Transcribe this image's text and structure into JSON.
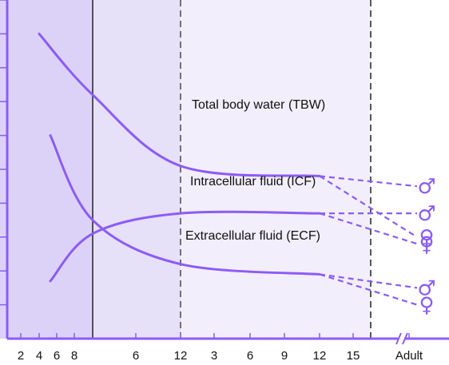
{
  "chart_data": {
    "type": "line",
    "title": "",
    "xlabel": "",
    "ylabel": "",
    "x_tick_labels": [
      "2",
      "4",
      "6",
      "8",
      "6",
      "12",
      "3",
      "6",
      "9",
      "12",
      "15",
      "Adult"
    ],
    "x_axis_break": true,
    "grid": false,
    "colors": {
      "line": "#8b5cf6",
      "region_fetal": "#dcd2f7",
      "region_infant": "#e6e0f8",
      "region_child": "#f2eefb",
      "axis": "#8b5cf6",
      "divider": "#222222"
    },
    "sex_symbols": {
      "male": "♂",
      "female": "♀"
    },
    "series": [
      {
        "name": "Total body water (TBW)",
        "points": [
          {
            "x": "4",
            "y": 9.0
          },
          {
            "x": "birth",
            "y": 7.2
          },
          {
            "x": "12",
            "y": 5.1
          },
          {
            "x": "12 (years)",
            "y": 4.8
          }
        ],
        "adult": {
          "male": 4.5,
          "female": 3.0
        }
      },
      {
        "name": "Intracellular fluid (ICF)",
        "points": [
          {
            "x": "6",
            "y": 1.7
          },
          {
            "x": "birth",
            "y": 3.1
          },
          {
            "x": "12",
            "y": 3.7
          },
          {
            "x": "12 (years)",
            "y": 3.7
          }
        ],
        "adult": {
          "male": 3.7,
          "female": 2.8
        }
      },
      {
        "name": "Extracellular fluid (ECF)",
        "points": [
          {
            "x": "6",
            "y": 6.0
          },
          {
            "x": "birth",
            "y": 3.5
          },
          {
            "x": "12",
            "y": 2.2
          },
          {
            "x": "12 (years)",
            "y": 1.9
          }
        ],
        "adult": {
          "male": 1.5,
          "female": 1.0
        }
      }
    ]
  }
}
